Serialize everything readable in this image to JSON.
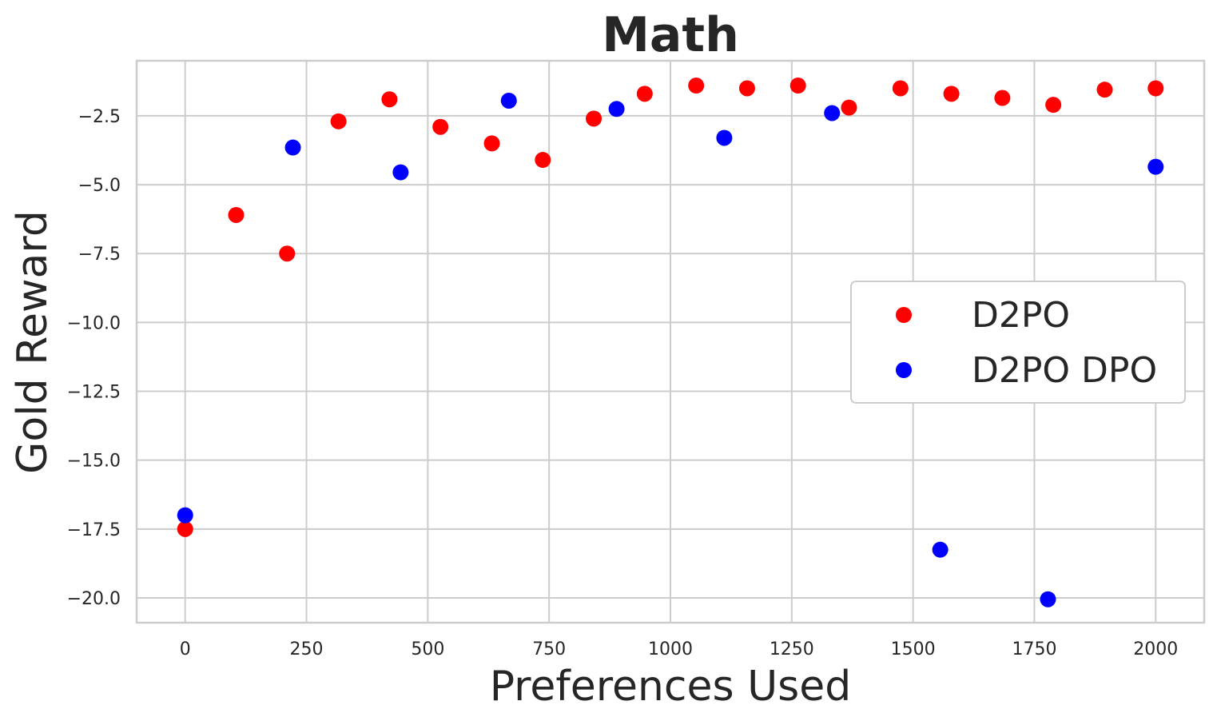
{
  "chart_data": {
    "type": "scatter",
    "title": "Math",
    "xlabel": "Preferences Used",
    "ylabel": "Gold Reward",
    "xlim": [
      -100,
      2100
    ],
    "ylim": [
      -20.9,
      -0.5
    ],
    "xticks": [
      0,
      250,
      500,
      750,
      1000,
      1250,
      1500,
      1750,
      2000
    ],
    "xtick_labels": [
      "0",
      "250",
      "500",
      "750",
      "1000",
      "1250",
      "1500",
      "1750",
      "2000"
    ],
    "yticks": [
      -2.5,
      -5.0,
      -7.5,
      -10.0,
      -12.5,
      -15.0,
      -17.5,
      -20.0
    ],
    "ytick_labels": [
      "−2.5",
      "−5.0",
      "−7.5",
      "−10.0",
      "−12.5",
      "−15.0",
      "−17.5",
      "−20.0"
    ],
    "grid": true,
    "legend_position": "center-right",
    "series": [
      {
        "name": "D2PO",
        "color": "#ff0000",
        "points": [
          {
            "x": 0,
            "y": -17.5
          },
          {
            "x": 105,
            "y": -6.1
          },
          {
            "x": 210,
            "y": -7.5
          },
          {
            "x": 316,
            "y": -2.7
          },
          {
            "x": 421,
            "y": -1.9
          },
          {
            "x": 526,
            "y": -2.9
          },
          {
            "x": 632,
            "y": -3.5
          },
          {
            "x": 737,
            "y": -4.1
          },
          {
            "x": 842,
            "y": -2.6
          },
          {
            "x": 947,
            "y": -1.7
          },
          {
            "x": 1053,
            "y": -1.4
          },
          {
            "x": 1158,
            "y": -1.5
          },
          {
            "x": 1263,
            "y": -1.4
          },
          {
            "x": 1368,
            "y": -2.2
          },
          {
            "x": 1474,
            "y": -1.5
          },
          {
            "x": 1579,
            "y": -1.7
          },
          {
            "x": 1684,
            "y": -1.85
          },
          {
            "x": 1789,
            "y": -2.1
          },
          {
            "x": 1895,
            "y": -1.55
          },
          {
            "x": 2000,
            "y": -1.5
          }
        ]
      },
      {
        "name": "D2PO DPO",
        "color": "#0000ff",
        "points": [
          {
            "x": 0,
            "y": -17.0
          },
          {
            "x": 222,
            "y": -3.65
          },
          {
            "x": 444,
            "y": -4.55
          },
          {
            "x": 667,
            "y": -1.95
          },
          {
            "x": 889,
            "y": -2.25
          },
          {
            "x": 1111,
            "y": -3.3
          },
          {
            "x": 1333,
            "y": -2.4
          },
          {
            "x": 1556,
            "y": -18.25
          },
          {
            "x": 1778,
            "y": -20.05
          },
          {
            "x": 2000,
            "y": -4.35
          }
        ]
      }
    ]
  }
}
